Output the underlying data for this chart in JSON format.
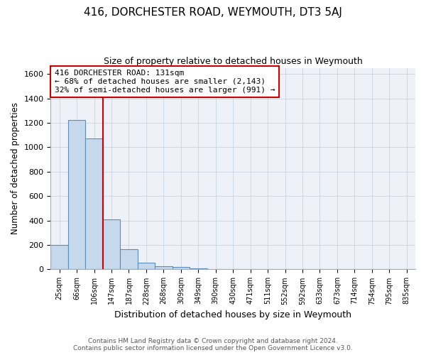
{
  "title": "416, DORCHESTER ROAD, WEYMOUTH, DT3 5AJ",
  "subtitle": "Size of property relative to detached houses in Weymouth",
  "xlabel": "Distribution of detached houses by size in Weymouth",
  "ylabel": "Number of detached properties",
  "categories": [
    "25sqm",
    "66sqm",
    "106sqm",
    "147sqm",
    "187sqm",
    "228sqm",
    "268sqm",
    "309sqm",
    "349sqm",
    "390sqm",
    "430sqm",
    "471sqm",
    "511sqm",
    "552sqm",
    "592sqm",
    "633sqm",
    "673sqm",
    "714sqm",
    "754sqm",
    "795sqm",
    "835sqm"
  ],
  "bar_heights": [
    200,
    1225,
    1070,
    410,
    165,
    55,
    25,
    20,
    10,
    0,
    0,
    0,
    0,
    0,
    0,
    0,
    0,
    0,
    0,
    0,
    0
  ],
  "bar_color": "#c5d8ec",
  "bar_edge_color": "#5c8db8",
  "vline_x_index": 2.5,
  "annotation_text": "416 DORCHESTER ROAD: 131sqm\n← 68% of detached houses are smaller (2,143)\n32% of semi-detached houses are larger (991) →",
  "annotation_box_color": "#ffffff",
  "annotation_box_edge": "#cc0000",
  "vline_color": "#cc0000",
  "ylim": [
    0,
    1650
  ],
  "yticks": [
    0,
    200,
    400,
    600,
    800,
    1000,
    1200,
    1400,
    1600
  ],
  "grid_color": "#d0d8e4",
  "bg_color": "#eef2f8",
  "footer_line1": "Contains HM Land Registry data © Crown copyright and database right 2024.",
  "footer_line2": "Contains public sector information licensed under the Open Government Licence v3.0."
}
